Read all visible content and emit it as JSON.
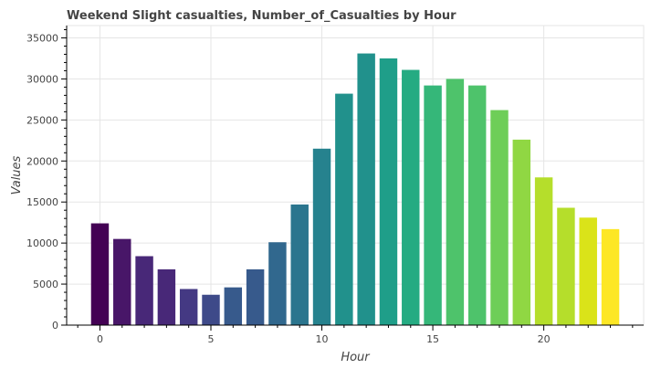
{
  "chart_data": {
    "type": "bar",
    "title": "Weekend Slight casualties, Number_of_Casualties by Hour",
    "xlabel": "Hour",
    "ylabel": "Values",
    "categories": [
      0,
      1,
      2,
      3,
      4,
      5,
      6,
      7,
      8,
      9,
      10,
      11,
      12,
      13,
      14,
      15,
      16,
      17,
      18,
      19,
      20,
      21,
      22,
      23
    ],
    "values": [
      12400,
      10500,
      8400,
      6800,
      4400,
      3700,
      4600,
      6800,
      10100,
      14700,
      21500,
      28200,
      33100,
      32500,
      31100,
      29200,
      30000,
      29200,
      26200,
      22600,
      18000,
      14300,
      13100,
      11700
    ],
    "ylim": [
      0,
      36500
    ],
    "xlim": [
      -1.5,
      24.5
    ],
    "y_ticks": [
      0,
      5000,
      10000,
      15000,
      20000,
      25000,
      30000,
      35000
    ],
    "x_ticks": [
      0,
      5,
      10,
      15,
      20
    ],
    "grid": true,
    "colors": [
      "#440154",
      "#481668",
      "#482878",
      "#443983",
      "#3e4a89",
      "#375a8c",
      "#31688e",
      "#2b758e",
      "#26828e",
      "#21918c",
      "#1f9e89",
      "#25ab82",
      "#35b779",
      "#4ec36b",
      "#6ece58",
      "#90d743",
      "#b5de2b",
      "#dae319",
      "#fde725"
    ]
  }
}
